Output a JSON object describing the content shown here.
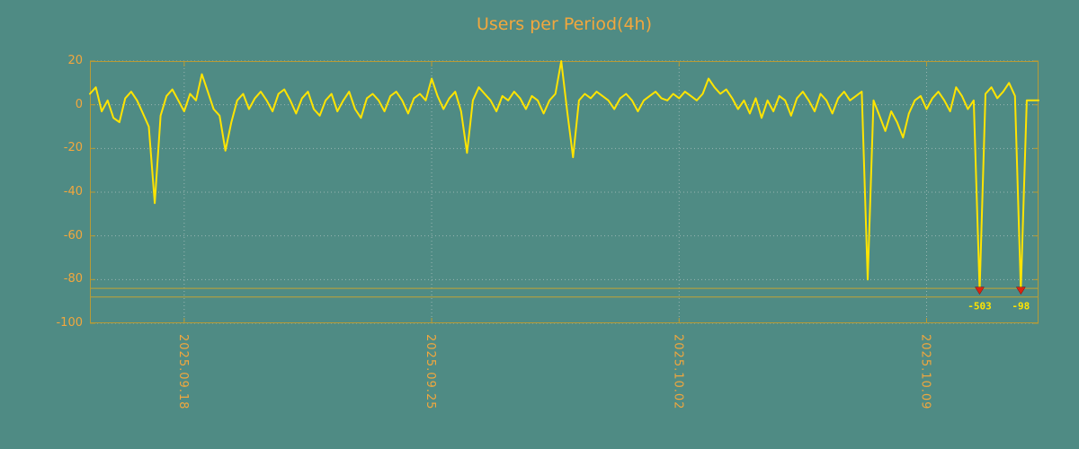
{
  "title": "Users per Period(4h)",
  "colors": {
    "background": "#4f8b84",
    "text": "#f2a73d",
    "line": "#ffe400",
    "grid": "#d9d9d9",
    "frame": "#b89b35",
    "threshold": "#c2a335",
    "marker": "#dd2211",
    "marker_label": "#ffe400"
  },
  "chart_data": {
    "type": "line",
    "title": "Users per Period(4h)",
    "xlabel": "",
    "ylabel": "",
    "ylim": [
      -100,
      20
    ],
    "y_ticks": [
      20,
      0,
      -20,
      -40,
      -60,
      -80,
      -100
    ],
    "x_ticks": [
      {
        "label": "2025.09.18",
        "index": 16
      },
      {
        "label": "2025.09.25",
        "index": 58
      },
      {
        "label": "2025.10.02",
        "index": 100
      },
      {
        "label": "2025.10.09",
        "index": 142
      }
    ],
    "threshold_lines": [
      -84,
      -88
    ],
    "grid": true,
    "legend": "none",
    "series_name": "Users",
    "values": [
      5,
      8,
      -3,
      2,
      -6,
      -8,
      3,
      6,
      2,
      -4,
      -10,
      -45,
      -5,
      4,
      7,
      2,
      -3,
      5,
      2,
      14,
      6,
      -2,
      -5,
      -21,
      -8,
      2,
      5,
      -2,
      3,
      6,
      2,
      -3,
      5,
      7,
      2,
      -4,
      3,
      6,
      -2,
      -5,
      2,
      5,
      -3,
      2,
      6,
      -2,
      -6,
      3,
      5,
      2,
      -3,
      4,
      6,
      2,
      -4,
      3,
      5,
      2,
      12,
      4,
      -2,
      3,
      6,
      -3,
      -22,
      2,
      8,
      5,
      2,
      -3,
      4,
      2,
      6,
      3,
      -2,
      4,
      2,
      -4,
      2,
      5,
      20,
      -3,
      -24,
      2,
      5,
      3,
      6,
      4,
      2,
      -2,
      3,
      5,
      2,
      -3,
      2,
      4,
      6,
      3,
      2,
      5,
      3,
      6,
      4,
      2,
      5,
      12,
      8,
      5,
      7,
      3,
      -2,
      2,
      -4,
      3,
      -6,
      2,
      -3,
      4,
      2,
      -5,
      3,
      6,
      2,
      -3,
      5,
      2,
      -4,
      3,
      6,
      2,
      4,
      6,
      -80,
      2,
      -5,
      -12,
      -3,
      -8,
      -15,
      -4,
      2,
      4,
      -2,
      3,
      6,
      2,
      -3,
      8,
      4,
      -2,
      2,
      -85,
      5,
      8,
      3,
      6,
      10,
      4,
      -85,
      2,
      2,
      2
    ],
    "markers": [
      {
        "index": 151,
        "value": -85.5,
        "label": "-503"
      },
      {
        "index": 158,
        "value": -85.5,
        "label": "-98"
      }
    ]
  }
}
